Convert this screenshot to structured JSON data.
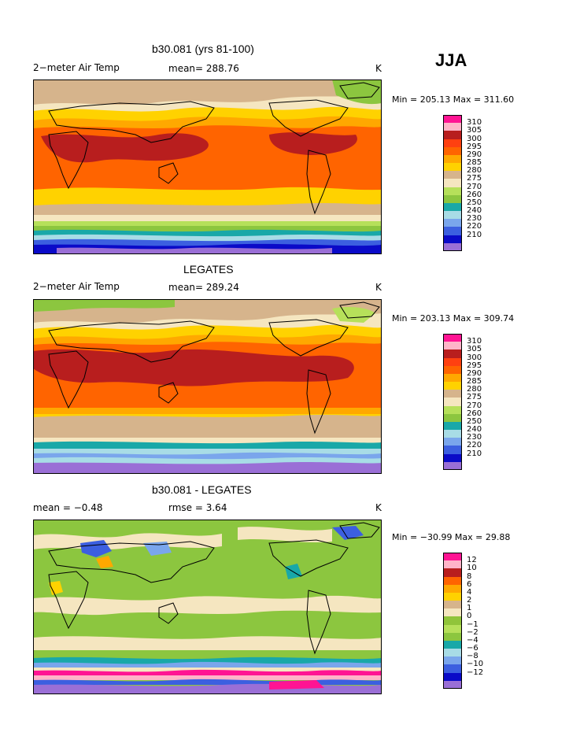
{
  "season": "JJA",
  "palette": {
    "abs": [
      "#9a6fd6",
      "#0a0ac8",
      "#3c5fe0",
      "#7aa6ec",
      "#a8dce6",
      "#19a8a8",
      "#8cc63f",
      "#b6e05a",
      "#f5e6c0",
      "#d6b48c",
      "#ffd200",
      "#ffa800",
      "#ff6400",
      "#ff4010",
      "#b81e1e",
      "#ffb4c8",
      "#ff1493"
    ],
    "diff": [
      "#9a6fd6",
      "#0a0ac8",
      "#3c5fe0",
      "#7aa6ec",
      "#a8dce6",
      "#19a8a8",
      "#8cc63f",
      "#b6e05a",
      "#90c43a",
      "#f5e6c0",
      "#d6b48c",
      "#ffd200",
      "#ffa800",
      "#ff6400",
      "#b81e1e",
      "#ffb4c8",
      "#ff1493"
    ]
  },
  "panels": [
    {
      "title": "b30.081 (yrs 81-100)",
      "left_label": "2−meter Air Temp",
      "center_label": "mean= 288.76",
      "units": "K",
      "minmax": "Min = 205.13 Max = 311.60",
      "colorbar": [
        "310",
        "305",
        "300",
        "295",
        "290",
        "285",
        "280",
        "275",
        "270",
        "260",
        "250",
        "240",
        "230",
        "220",
        "210"
      ]
    },
    {
      "title": "LEGATES",
      "left_label": "2−meter Air Temp",
      "center_label": "mean= 289.24",
      "units": "K",
      "minmax": "Min = 203.13 Max = 309.74",
      "colorbar": [
        "310",
        "305",
        "300",
        "295",
        "290",
        "285",
        "280",
        "275",
        "270",
        "260",
        "250",
        "240",
        "230",
        "220",
        "210"
      ]
    },
    {
      "title": "b30.081 - LEGATES",
      "left_label": "mean =   −0.48",
      "center_label": "rmse =   3.64",
      "units": "K",
      "minmax": "Min = −30.99 Max =   29.88",
      "colorbar": [
        "12",
        "10",
        "8",
        "6",
        "4",
        "2",
        "1",
        "0",
        "−1",
        "−2",
        "−4",
        "−6",
        "−8",
        "−10",
        "−12"
      ]
    }
  ]
}
